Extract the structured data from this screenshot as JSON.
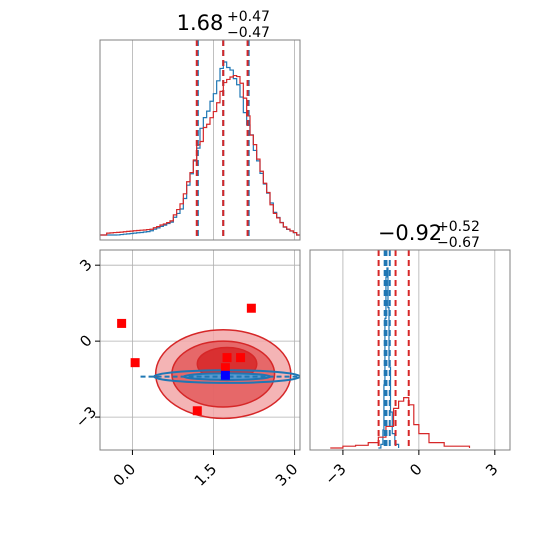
{
  "colors": {
    "blue": "#1f77b4",
    "red": "#d62728",
    "marker_red": "#ff0000",
    "marker_blue": "#0000ff"
  },
  "chart_data": [
    {
      "type": "histogram",
      "panel": "top-left",
      "title": {
        "value": "1.68",
        "upper": "+0.47",
        "lower": "−0.47"
      },
      "x_range": [
        -0.6,
        3.1
      ],
      "grid": true,
      "quantiles": {
        "blue": [
          1.21,
          1.68,
          2.15
        ],
        "red": [
          1.19,
          1.68,
          2.13
        ]
      },
      "series": [
        {
          "color": "blue",
          "x": [
            -0.3,
            0.3,
            0.7,
            0.9,
            1.1,
            1.3,
            1.5,
            1.6,
            1.75,
            1.85,
            2.0,
            2.2,
            2.4,
            2.6,
            2.8,
            3.0
          ],
          "density": [
            0.0,
            0.02,
            0.07,
            0.16,
            0.4,
            0.62,
            0.78,
            0.87,
            0.96,
            0.9,
            0.78,
            0.5,
            0.3,
            0.13,
            0.04,
            0.01
          ]
        },
        {
          "color": "red",
          "x": [
            -0.5,
            0.3,
            0.7,
            0.9,
            1.1,
            1.3,
            1.5,
            1.6,
            1.75,
            1.9,
            2.0,
            2.2,
            2.4,
            2.6,
            2.8,
            3.0
          ],
          "density": [
            0.01,
            0.03,
            0.08,
            0.18,
            0.38,
            0.6,
            0.72,
            0.8,
            0.85,
            0.87,
            0.8,
            0.55,
            0.32,
            0.12,
            0.04,
            0.01
          ]
        }
      ]
    },
    {
      "type": "contour",
      "panel": "bottom-left",
      "x_range": [
        -0.6,
        3.1
      ],
      "y_range": [
        -4.3,
        3.6
      ],
      "xticks": [
        "0.0",
        "1.5",
        "3.0"
      ],
      "yticks": [
        "3",
        "0",
        "−3"
      ],
      "grid": true,
      "red_contours": [
        {
          "level": "outer",
          "cx": 1.68,
          "cy": -1.3,
          "rx": 1.25,
          "ry": 1.75
        },
        {
          "level": "middle",
          "cx": 1.68,
          "cy": -1.3,
          "rx": 0.95,
          "ry": 1.3
        },
        {
          "level": "inner",
          "cx": 1.75,
          "cy": -0.9,
          "rx": 0.55,
          "ry": 0.65
        }
      ],
      "blue_contours": [
        {
          "cx": 1.75,
          "cy": -1.4,
          "rx": 1.35,
          "ry": 0.25
        },
        {
          "cx": 1.75,
          "cy": -1.4,
          "rx": 0.8,
          "ry": 0.13
        }
      ],
      "markers": {
        "red": [
          {
            "x": -0.2,
            "y": 0.7
          },
          {
            "x": 0.05,
            "y": -0.85
          },
          {
            "x": 2.2,
            "y": 1.3
          },
          {
            "x": 1.2,
            "y": -2.75
          },
          {
            "x": 1.75,
            "y": -0.65
          },
          {
            "x": 2.0,
            "y": -0.65
          },
          {
            "x": 1.72,
            "y": -1.05
          }
        ],
        "blue": [
          {
            "x": 1.72,
            "y": -1.35
          }
        ]
      }
    },
    {
      "type": "histogram",
      "panel": "bottom-right",
      "title": {
        "value": "−0.92",
        "upper": "+0.52",
        "lower": "−0.67"
      },
      "x_range": [
        -4.3,
        3.6
      ],
      "xticks": [
        "−3",
        "0",
        "3"
      ],
      "grid": true,
      "quantiles": {
        "blue": [
          -1.35,
          -1.28,
          -1.15
        ],
        "red": [
          -1.59,
          -0.92,
          -0.4
        ]
      },
      "series": [
        {
          "color": "blue",
          "x": [
            -1.6,
            -1.5,
            -1.42,
            -1.38,
            -1.34,
            -1.3,
            -1.26,
            -1.22,
            -1.18,
            -1.12,
            -1.05,
            -0.95,
            -0.8
          ],
          "density": [
            0.0,
            0.02,
            0.1,
            0.35,
            0.72,
            0.95,
            1.0,
            0.78,
            0.45,
            0.2,
            0.08,
            0.02,
            0.0
          ]
        },
        {
          "color": "red",
          "x": [
            -3.5,
            -3.0,
            -2.5,
            -2.0,
            -1.6,
            -1.3,
            -1.0,
            -0.8,
            -0.6,
            -0.4,
            -0.2,
            0.0,
            0.4,
            1.0,
            2.0
          ],
          "density": [
            0.0,
            0.01,
            0.015,
            0.03,
            0.06,
            0.12,
            0.22,
            0.26,
            0.28,
            0.24,
            0.13,
            0.08,
            0.03,
            0.01,
            0.0
          ]
        }
      ]
    }
  ]
}
